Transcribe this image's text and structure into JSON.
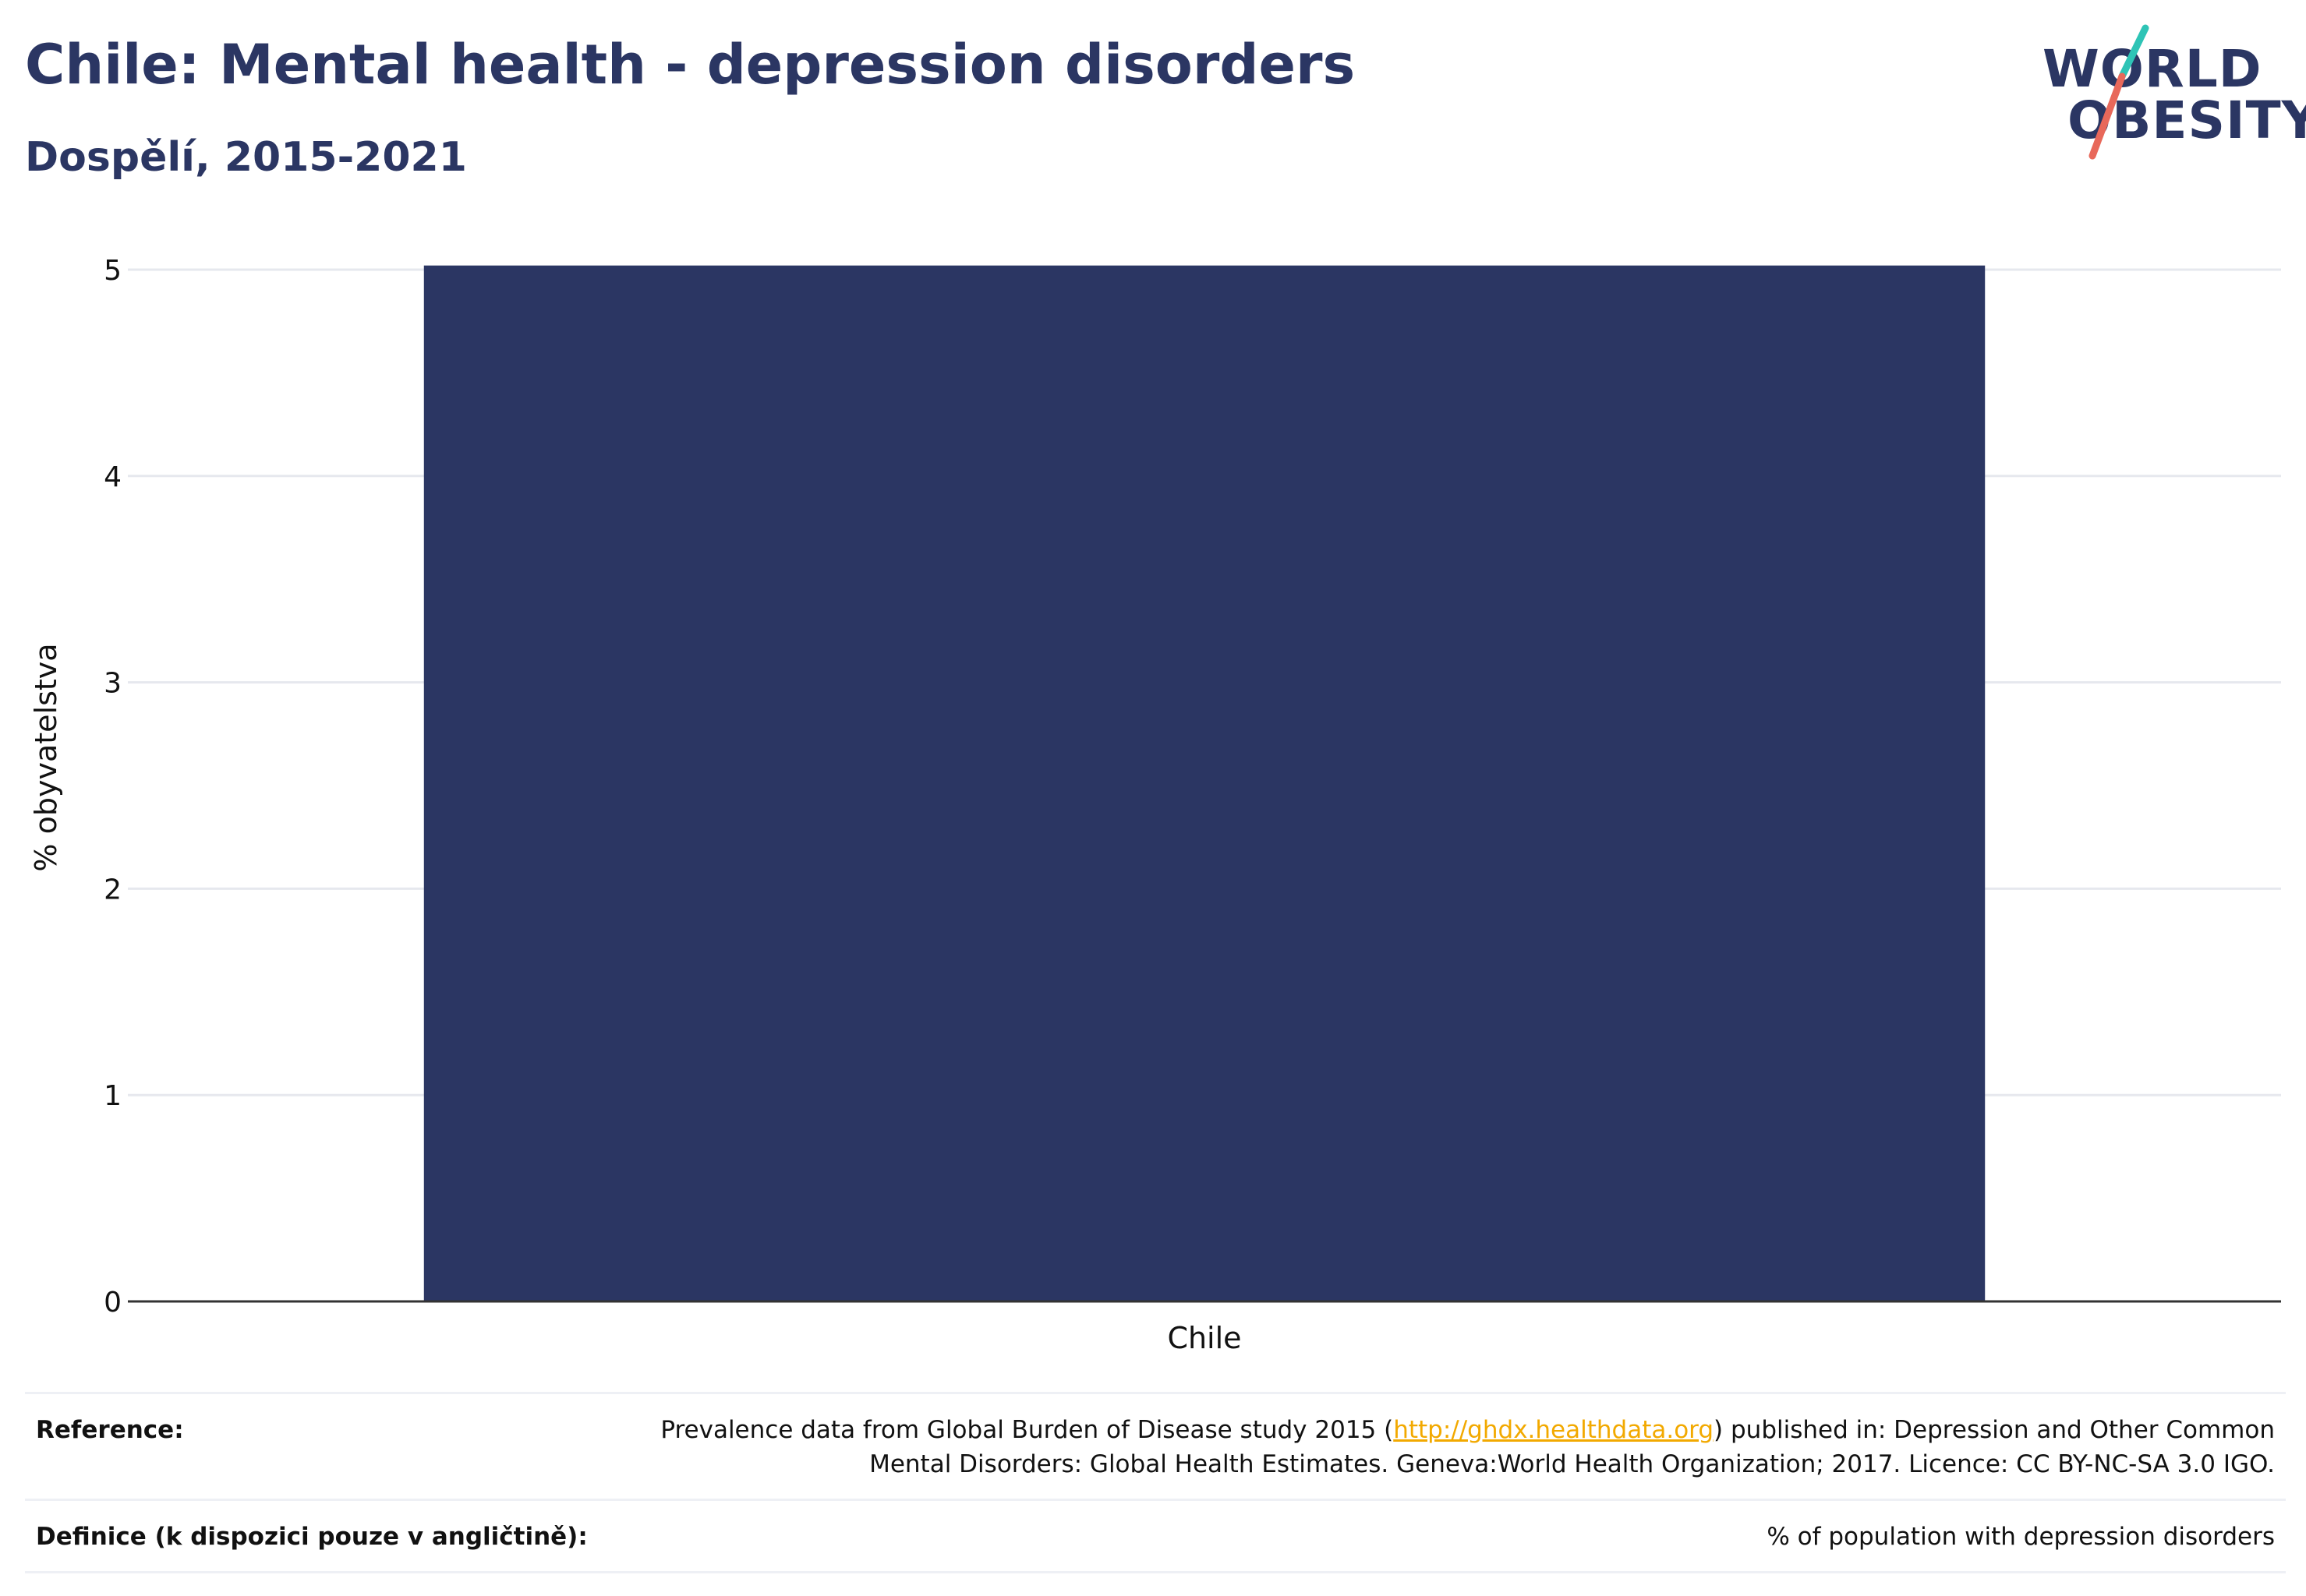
{
  "header": {
    "title": "Chile: Mental health - depression disorders",
    "subtitle": "Dospělí, 2015-2021"
  },
  "logo": {
    "line1": "WORLD",
    "line2": "OBESITY",
    "colors": {
      "text": "#2b3663",
      "slash_top": "#2ec4b6",
      "slash_bottom": "#e8685a"
    }
  },
  "colors": {
    "bar": "#2b3663",
    "gridline": "#e6e8ee",
    "baseline": "#333333",
    "link": "#f2a900"
  },
  "chart_data": {
    "type": "bar",
    "categories": [
      "Chile"
    ],
    "values": [
      5.02
    ],
    "ylabel": "% obyvatelstva",
    "xlabel": "",
    "ylim": [
      0,
      5
    ],
    "yticks": [
      0,
      1,
      2,
      3,
      4,
      5
    ],
    "grid": true
  },
  "reference": {
    "label": "Reference:",
    "text_before": "Prevalence data from Global Burden of Disease study 2015 (",
    "link_text": "http://ghdx.healthdata.org",
    "text_after": ") published in: Depression and Other Common Mental Disorders: Global Health Estimates. Geneva:World Health Organization; 2017. Licence: CC BY-NC-SA 3.0 IGO."
  },
  "definition": {
    "label": "Definice (k dispozici pouze v angličtině):",
    "text": "% of population with depression disorders"
  }
}
